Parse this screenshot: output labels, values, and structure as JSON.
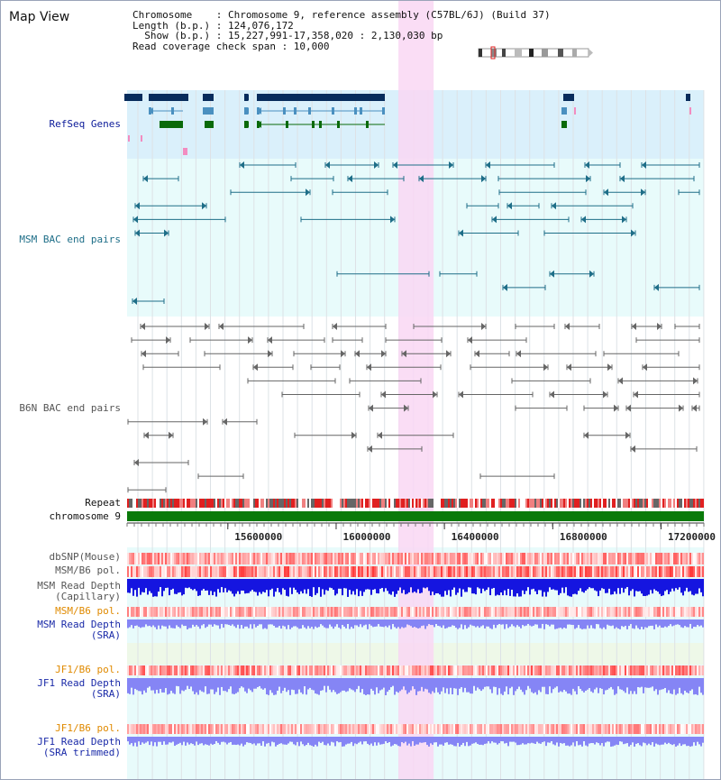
{
  "title": "Map View",
  "info": {
    "chromosome": "Chromosome    : Chromosome 9, reference assembly (C57BL/6J) (Build 37)",
    "length": "Length (b.p.) : 124,076,172",
    "show": "  Show (b.p.) : 15,227,991-17,358,020 : 2,130,030 bp",
    "coverage": "Read coverage check span : 10,000"
  },
  "tracks": {
    "refseq": "RefSeq Genes",
    "msm_bac": "MSM BAC end pairs",
    "b6n_bac": "B6N BAC end pairs",
    "repeat": "Repeat",
    "chromosome": "chromosome 9",
    "dbsnp": "dbSNP(Mouse)",
    "msm_b6_pol": "MSM/B6 pol.",
    "msm_depth_cap_1": "MSM Read Depth",
    "msm_depth_cap_2": "(Capillary)",
    "msm_b6_pol_2": "MSM/B6 pol.",
    "msm_depth_sra_1": "MSM Read Depth",
    "msm_depth_sra_2": "(SRA)",
    "jf1_b6_pol": "JF1/B6 pol.",
    "jf1_depth_sra_1": "JF1 Read Depth",
    "jf1_depth_sra_2": "(SRA)",
    "jf1_b6_pol_2": "JF1/B6 pol.",
    "jf1_depth_trim_1": "JF1 Read Depth",
    "jf1_depth_trim_2": "(SRA trimmed)"
  },
  "axis": {
    "start_bp": 15227991,
    "end_bp": 17358020,
    "ticks": [
      {
        "value": 15600000,
        "label": "15600000"
      },
      {
        "value": 16000000,
        "label": "16000000"
      },
      {
        "value": 16400000,
        "label": "16400000"
      },
      {
        "value": 16800000,
        "label": "16800000"
      },
      {
        "value": 17200000,
        "label": "17200000"
      }
    ]
  },
  "highlight": {
    "start_bp": 16230000,
    "end_bp": 16360000
  },
  "colors": {
    "refseq_bg": "#daf0fb",
    "track_bg": "#e8fbfb",
    "highlight": "#f9d7f3",
    "msm_pairs": "#1e6e88",
    "b6n_pairs": "#666666",
    "refseq_label": "#0b1a99",
    "msm_label": "#1e6e88",
    "b6n_label": "#555555",
    "orange_label": "#e08a00",
    "blue_label": "#1a2aa8",
    "chromosome_bar": "#0a7a0a",
    "depth_blue": "#1515e0",
    "depth_lavender": "#8585f5"
  }
}
